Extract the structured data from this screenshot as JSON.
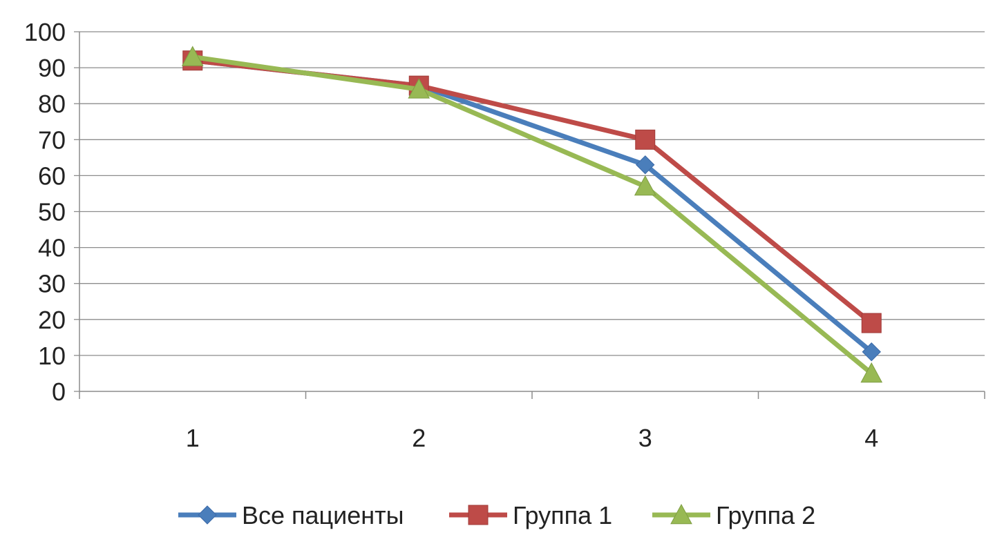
{
  "chart_data": {
    "type": "line",
    "categories": [
      "1",
      "2",
      "3",
      "4"
    ],
    "ylim": [
      0,
      100
    ],
    "yticks": [
      0,
      10,
      20,
      30,
      40,
      50,
      60,
      70,
      80,
      90,
      100
    ],
    "grid": true,
    "legend_position": "bottom",
    "series": [
      {
        "name": "Все пациенты",
        "values": [
          92,
          85,
          63,
          11
        ],
        "color": "#4A7EBB",
        "marker": "diamond"
      },
      {
        "name": "Группа 1",
        "values": [
          92,
          85,
          70,
          19
        ],
        "color": "#BE4B48",
        "marker": "square"
      },
      {
        "name": "Группа 2",
        "values": [
          93,
          84,
          57,
          5
        ],
        "color": "#98B954",
        "marker": "triangle"
      }
    ]
  }
}
